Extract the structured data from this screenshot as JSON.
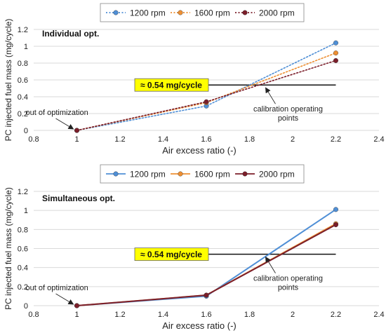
{
  "chart_data": [
    {
      "type": "line",
      "title": "Individual opt.",
      "xlabel": "Air excess ratio (-)",
      "ylabel": "PC injected fuel mass (mg/cycle)",
      "xlim": [
        0.8,
        2.4
      ],
      "ylim": [
        0,
        1.2
      ],
      "x_ticks": [
        "0.8",
        "1",
        "1.2",
        "1.4",
        "1.6",
        "1.8",
        "2",
        "2.2",
        "2.4"
      ],
      "y_ticks": [
        "0",
        "0.2",
        "0.4",
        "0.6",
        "0.8",
        "1",
        "1.2"
      ],
      "grid": true,
      "legend_position": "top",
      "x": [
        1.0,
        1.6,
        2.2
      ],
      "series": [
        {
          "name": "1200 rpm",
          "color": "#4f8fd6",
          "line_style": "dotted",
          "values": [
            0.0,
            0.29,
            1.04
          ]
        },
        {
          "name": "1600 rpm",
          "color": "#ed8f33",
          "line_style": "dotted",
          "values": [
            0.0,
            0.33,
            0.92
          ]
        },
        {
          "name": "2000 rpm",
          "color": "#7b1e2a",
          "line_style": "dotted",
          "values": [
            0.0,
            0.34,
            0.83
          ]
        }
      ],
      "reference_line": {
        "y": 0.54,
        "x_start": 1.6,
        "x_end": 2.2,
        "label": "≈ 0.54 mg/cycle"
      },
      "annotations": [
        {
          "text": "out of optimization",
          "point": [
            1.0,
            0.0
          ]
        },
        {
          "text": "calibration operating points",
          "point": [
            2.2,
            0.54
          ]
        }
      ]
    },
    {
      "type": "line",
      "title": "Simultaneous opt.",
      "xlabel": "Air excess ratio (-)",
      "ylabel": "PC injected fuel mass (mg/cycle)",
      "xlim": [
        0.8,
        2.4
      ],
      "ylim": [
        0,
        1.2
      ],
      "x_ticks": [
        "0.8",
        "1",
        "1.2",
        "1.4",
        "1.6",
        "1.8",
        "2",
        "2.2",
        "2.4"
      ],
      "y_ticks": [
        "0",
        "0.2",
        "0.4",
        "0.6",
        "0.8",
        "1",
        "1.2"
      ],
      "grid": true,
      "legend_position": "top",
      "x": [
        1.0,
        1.6,
        2.2
      ],
      "series": [
        {
          "name": "1200 rpm",
          "color": "#4f8fd6",
          "line_style": "dotted",
          "values": [
            0.0,
            0.1,
            1.01
          ]
        },
        {
          "name": "1600 rpm",
          "color": "#ed8f33",
          "line_style": "dotted",
          "values": [
            0.0,
            0.11,
            0.86
          ]
        },
        {
          "name": "2000 rpm",
          "color": "#7b1e2a",
          "line_style": "dotted",
          "values": [
            0.0,
            0.11,
            0.85
          ]
        }
      ],
      "reference_line": {
        "y": 0.54,
        "x_start": 1.6,
        "x_end": 2.2,
        "label": "≈ 0.54 mg/cycle"
      },
      "annotations": [
        {
          "text": "out of optimization",
          "point": [
            1.0,
            0.0
          ]
        },
        {
          "text": "calibration operating points",
          "point": [
            2.2,
            0.54
          ]
        }
      ]
    }
  ]
}
